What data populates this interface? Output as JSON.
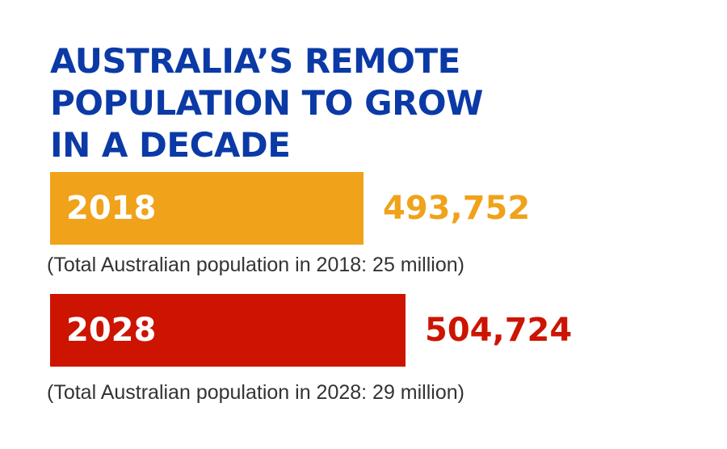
{
  "chart_data": {
    "type": "bar",
    "orientation": "horizontal",
    "title_lines": [
      "AUSTRALIA’S REMOTE",
      "POPULATION TO GROW",
      "IN A DECADE"
    ],
    "categories": [
      "2018",
      "2028"
    ],
    "values": [
      493752,
      504724
    ],
    "value_labels": [
      "493,752",
      "504,724"
    ],
    "notes": [
      "(Total Australian population in 2018: 25 million)",
      "(Total Australian population in 2028: 29 million)"
    ],
    "colors": [
      "#f0a21a",
      "#cc1400"
    ],
    "title_color": "#0b3aa6",
    "axis_min": 460000,
    "axis_max": 504724
  }
}
